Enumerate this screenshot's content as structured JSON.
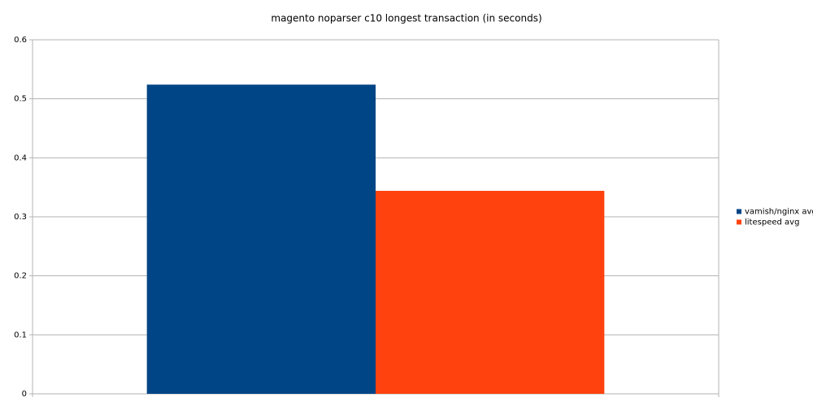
{
  "chart_data": {
    "type": "bar",
    "title": "magento noparser c10 longest transaction (in seconds)",
    "categories": [
      null
    ],
    "series": [
      {
        "name": "vamish/nginx avg",
        "color": "#004586",
        "values": [
          0.524
        ]
      },
      {
        "name": "litespeed avg",
        "color": "#ff420e",
        "values": [
          0.344
        ]
      }
    ],
    "ylim": [
      0,
      0.6
    ],
    "yticks": [
      0,
      0.1,
      0.2,
      0.3,
      0.4,
      0.5,
      0.6
    ],
    "grid": true,
    "legend": "right"
  }
}
